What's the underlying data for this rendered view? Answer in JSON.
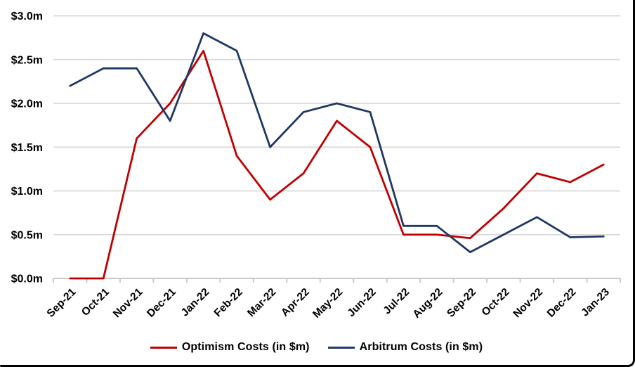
{
  "frame": {
    "background_color": "#ffffff",
    "border_color": "#000000"
  },
  "chart_data": {
    "type": "line",
    "categories": [
      "Sep-21",
      "Oct-21",
      "Nov-21",
      "Dec-21",
      "Jan-22",
      "Feb-22",
      "Mar-22",
      "Apr-22",
      "May-22",
      "Jun-22",
      "Jul-22",
      "Aug-22",
      "Sep-22",
      "Oct-22",
      "Nov-22",
      "Dec-22",
      "Jan-23"
    ],
    "series": [
      {
        "name": "Optimism Costs (in $m)",
        "color": "#C00000",
        "values": [
          0.0,
          0.0,
          1.6,
          2.0,
          2.6,
          1.4,
          0.9,
          1.2,
          1.8,
          1.5,
          0.5,
          0.5,
          0.46,
          0.8,
          1.2,
          1.1,
          1.3
        ]
      },
      {
        "name": "Arbitrum Costs (in $m)",
        "color": "#1F3864",
        "values": [
          2.2,
          2.4,
          2.4,
          1.8,
          2.8,
          2.6,
          1.5,
          1.9,
          2.0,
          1.9,
          0.6,
          0.6,
          0.3,
          0.5,
          0.7,
          0.47,
          0.48
        ]
      }
    ],
    "y_ticks": [
      {
        "value": 0.0,
        "label": "$0.0m"
      },
      {
        "value": 0.5,
        "label": "$0.5m"
      },
      {
        "value": 1.0,
        "label": "$1.0m"
      },
      {
        "value": 1.5,
        "label": "$1.5m"
      },
      {
        "value": 2.0,
        "label": "$2.0m"
      },
      {
        "value": 2.5,
        "label": "$2.5m"
      },
      {
        "value": 3.0,
        "label": "$3.0m"
      }
    ],
    "ylim": [
      0,
      3.0
    ],
    "title": "",
    "xlabel": "",
    "ylabel": "",
    "grid": true,
    "gridline_color": "#D9D9D9",
    "axis_line_color": "#C9C9C9",
    "tick_label_color": "#000000",
    "x_label_rotation_deg": 45,
    "legend_position": "bottom"
  }
}
